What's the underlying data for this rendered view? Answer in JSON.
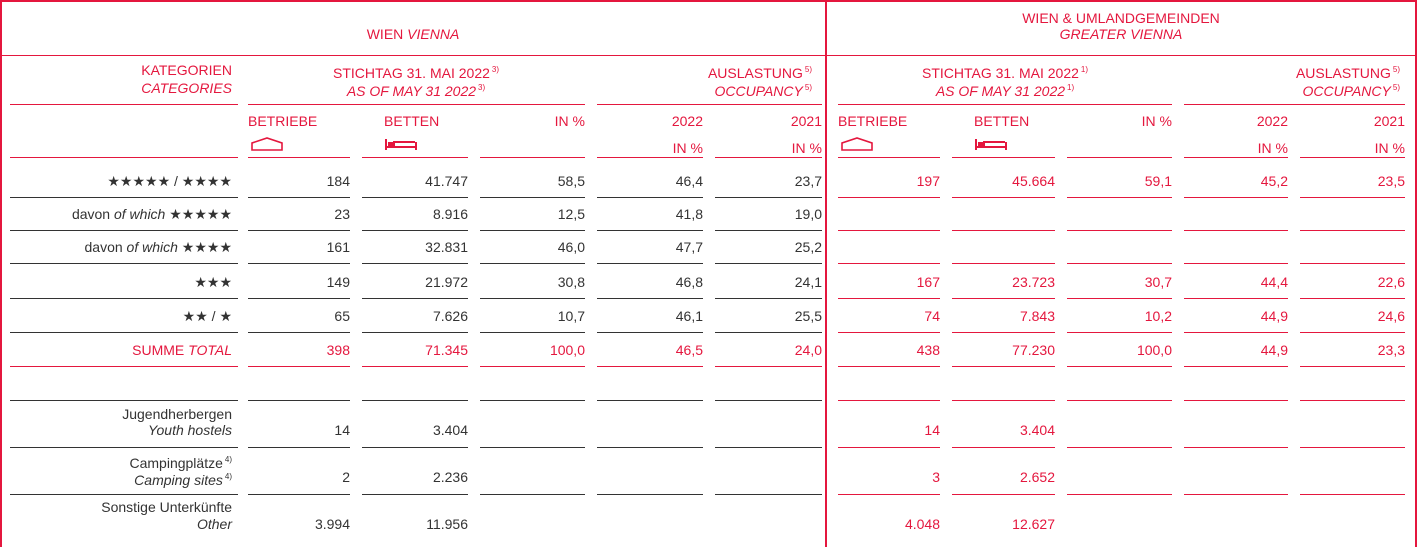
{
  "header": {
    "vienna": {
      "de": "WIEN",
      "en": "VIENNA"
    },
    "greater": {
      "de": "WIEN & UMLANDGEMEINDEN",
      "en": "GREATER VIENNA"
    }
  },
  "subheader": {
    "categories": {
      "de": "KATEGORIEN",
      "en": "CATEGORIES"
    },
    "vienna_date": {
      "de": "STICHTAG 31. MAI 2022",
      "en": "AS OF MAY 31 2022",
      "note": "3)"
    },
    "vienna_occupancy": {
      "de": "AUSLASTUNG",
      "en": "OCCUPANCY",
      "note": "5)"
    },
    "greater_date": {
      "de": "STICHTAG 31. MAI 2022",
      "en": "AS OF MAY 31 2022",
      "note": "1)"
    },
    "greater_occupancy": {
      "de": "AUSLASTUNG",
      "en": "OCCUPANCY",
      "note": "5)"
    }
  },
  "columns": {
    "establishments": "BETRIEBE",
    "beds": "BETTEN",
    "share": "IN %",
    "year1": {
      "year": "2022",
      "unit": "IN %"
    },
    "year2": {
      "year": "2021",
      "unit": "IN %"
    }
  },
  "rows": [
    {
      "label": {
        "stars": "★★★★★ / ★★★★"
      },
      "vienna": [
        "184",
        "41.747",
        "58,5",
        "46,4",
        "23,7"
      ],
      "greater": [
        "197",
        "45.664",
        "59,1",
        "45,2",
        "23,5"
      ]
    },
    {
      "label": {
        "de": "davon",
        "en": "of which",
        "stars": "★★★★★"
      },
      "vienna": [
        "23",
        "8.916",
        "12,5",
        "41,8",
        "19,0"
      ],
      "greater": []
    },
    {
      "label": {
        "de": "davon",
        "en": "of which",
        "stars": "★★★★"
      },
      "vienna": [
        "161",
        "32.831",
        "46,0",
        "47,7",
        "25,2"
      ],
      "greater": []
    },
    {
      "label": {
        "stars": "★★★"
      },
      "vienna": [
        "149",
        "21.972",
        "30,8",
        "46,8",
        "24,1"
      ],
      "greater": [
        "167",
        "23.723",
        "30,7",
        "44,4",
        "22,6"
      ]
    },
    {
      "label": {
        "stars": "★★ / ★"
      },
      "vienna": [
        "65",
        "7.626",
        "10,7",
        "46,1",
        "25,5"
      ],
      "greater": [
        "74",
        "7.843",
        "10,2",
        "44,9",
        "24,6"
      ]
    }
  ],
  "total": {
    "label": {
      "de": "SUMME",
      "en": "TOTAL"
    },
    "vienna": [
      "398",
      "71.345",
      "100,0",
      "46,5",
      "24,0"
    ],
    "greater": [
      "438",
      "77.230",
      "100,0",
      "44,9",
      "23,3"
    ]
  },
  "other_rows": [
    {
      "label": {
        "de": "Jugendherbergen",
        "en": "Youth hostels"
      },
      "vienna": [
        "14",
        "3.404"
      ],
      "greater": [
        "14",
        "3.404"
      ]
    },
    {
      "label": {
        "de": "Campingplätze",
        "en": "Camping sites",
        "note": "4)"
      },
      "vienna": [
        "2",
        "2.236"
      ],
      "greater": [
        "3",
        "2.652"
      ]
    },
    {
      "label": {
        "de": "Sonstige Unterkünfte",
        "en": "Other"
      },
      "vienna": [
        "3.994",
        "11.956"
      ],
      "greater": [
        "4.048",
        "12.627"
      ]
    }
  ]
}
